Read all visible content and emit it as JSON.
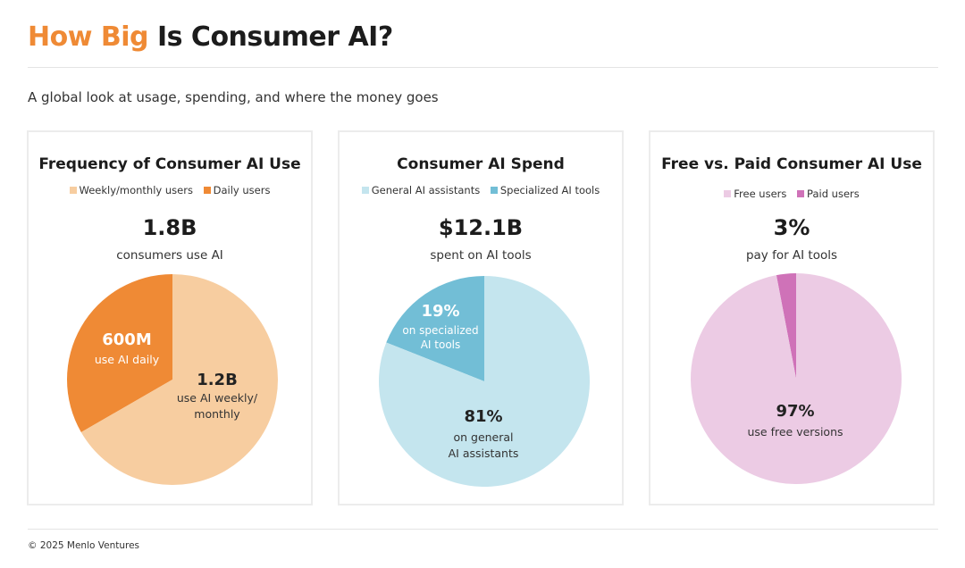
{
  "header": {
    "title_accent": "How Big",
    "title_rest": " Is Consumer AI?",
    "subtitle": "A global look at usage, spending, and where the money goes"
  },
  "footer": {
    "text": "© 2025 Menlo Ventures"
  },
  "colors": {
    "weekly": "#f7cda0",
    "daily": "#ef8a35",
    "general": "#c4e5ee",
    "specialized": "#72bed6",
    "free": "#eccbe4",
    "paid": "#cf72b8"
  },
  "panels": [
    {
      "title": "Frequency of Consumer AI Use",
      "legend": [
        "Weekly/monthly users",
        "Daily users"
      ],
      "big": "1.8B",
      "caption": "consumers use AI",
      "labels": [
        {
          "value": "600M",
          "text": "use AI daily"
        },
        {
          "value": "1.2B",
          "text1": "use AI weekly/",
          "text2": "monthly"
        }
      ]
    },
    {
      "title": "Consumer AI Spend",
      "legend": [
        "General AI assistants",
        "Specialized AI tools"
      ],
      "big": "$12.1B",
      "caption": "spent on AI tools",
      "labels": [
        {
          "value": "19%",
          "text1": "on specialized",
          "text2": "AI tools"
        },
        {
          "value": "81%",
          "text1": "on general",
          "text2": "AI assistants"
        }
      ]
    },
    {
      "title": "Free vs. Paid Consumer AI Use",
      "legend": [
        "Free users",
        "Paid users"
      ],
      "big": "3%",
      "caption": "pay for AI tools",
      "labels": [
        {
          "value": "97%",
          "text": "use free versions"
        }
      ]
    }
  ],
  "chart_data": [
    {
      "type": "pie",
      "title": "Frequency of Consumer AI Use",
      "categories": [
        "Weekly/monthly users",
        "Daily users"
      ],
      "values": [
        1.2,
        0.6
      ],
      "unit": "billion consumers",
      "total": "1.8B"
    },
    {
      "type": "pie",
      "title": "Consumer AI Spend",
      "categories": [
        "General AI assistants",
        "Specialized AI tools"
      ],
      "values": [
        81,
        19
      ],
      "unit": "%",
      "total": "$12.1B"
    },
    {
      "type": "pie",
      "title": "Free vs. Paid Consumer AI Use",
      "categories": [
        "Free users",
        "Paid users"
      ],
      "values": [
        97,
        3
      ],
      "unit": "%"
    }
  ]
}
